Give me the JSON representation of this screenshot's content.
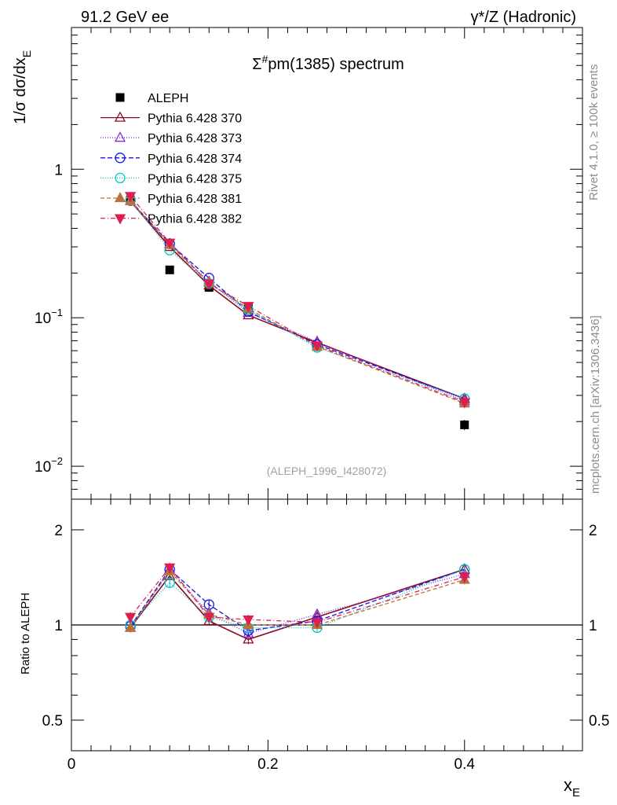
{
  "header": {
    "left": "91.2 GeV ee",
    "right": "γ*/Z (Hadronic)"
  },
  "side_text": {
    "rivet": "Rivet 4.1.0, ≥ 100k events",
    "mcplots": "mcplots.cern.ch [arXiv:1306.3436]"
  },
  "chart_data": [
    {
      "type": "scatter",
      "title_prefix": "Σ",
      "title_sup": "#",
      "title_rest": "pm(1385) spectrum",
      "ylabel_main": "1/σ  dσ/dx",
      "ylabel_sub": "E",
      "yscale": "log",
      "ylim": [
        0.006,
        9
      ],
      "xlim": [
        0,
        0.52
      ],
      "y_tick_labels": [
        {
          "value": 1,
          "base": "1",
          "exp": ""
        },
        {
          "value": 0.1,
          "base": "10",
          "exp": "−1"
        },
        {
          "value": 0.01,
          "base": "10",
          "exp": "−2"
        }
      ],
      "watermark": "(ALEPH_1996_I428072)",
      "legend_position": "top-left",
      "x": [
        0.06,
        0.1,
        0.14,
        0.18,
        0.25,
        0.4
      ],
      "series": [
        {
          "name": "ALEPH",
          "color": "#000000",
          "marker": "square",
          "dash": "",
          "values": [
            0.62,
            0.21,
            0.16,
            0.115,
            0.064,
            0.019
          ],
          "errors": [
            0.03,
            0.01,
            0.008,
            0.006,
            0.004,
            0.0015
          ]
        },
        {
          "name": "Pythia 6.428 370",
          "color": "#8b0a1e",
          "marker": "triangle-open",
          "dash": "",
          "values": [
            0.61,
            0.3,
            0.165,
            0.104,
            0.068,
            0.0285
          ]
        },
        {
          "name": "Pythia 6.428 373",
          "color": "#8a2be2",
          "marker": "triangle-open",
          "dash": "1,2",
          "values": [
            0.61,
            0.315,
            0.175,
            0.108,
            0.069,
            0.0275
          ]
        },
        {
          "name": "Pythia 6.428 374",
          "color": "#1414e6",
          "marker": "circle-open",
          "dash": "6,3",
          "values": [
            0.615,
            0.315,
            0.185,
            0.11,
            0.066,
            0.0285
          ]
        },
        {
          "name": "Pythia 6.428 375",
          "color": "#00c8c8",
          "marker": "circle-open",
          "dash": "1,2",
          "values": [
            0.62,
            0.285,
            0.17,
            0.113,
            0.063,
            0.0285
          ]
        },
        {
          "name": "Pythia 6.428 381",
          "color": "#b8733d",
          "marker": "triangle-filled",
          "dash": "5,3",
          "values": [
            0.61,
            0.31,
            0.172,
            0.115,
            0.064,
            0.0265
          ]
        },
        {
          "name": "Pythia 6.428 382",
          "color": "#dc1e50",
          "marker": "triangle-down-filled",
          "dash": "6,3,1,3",
          "values": [
            0.66,
            0.32,
            0.17,
            0.12,
            0.065,
            0.027
          ]
        }
      ]
    },
    {
      "type": "line",
      "ylabel": "Ratio to ALEPH",
      "xlabel_main": "x",
      "xlabel_sub": "E",
      "yscale": "log",
      "ylim": [
        0.4,
        2.5
      ],
      "reference_line": 1,
      "x_tick_labels": [
        {
          "value": 0,
          "label": "0"
        },
        {
          "value": 0.2,
          "label": "0.2"
        },
        {
          "value": 0.4,
          "label": "0.4"
        }
      ],
      "y_tick_labels": [
        {
          "value": 2,
          "label": "2"
        },
        {
          "value": 1,
          "label": "1"
        },
        {
          "value": 0.5,
          "label": "0.5"
        }
      ],
      "series": [
        {
          "name": "Pythia 6.428 370",
          "values": [
            0.98,
            1.43,
            1.03,
            0.9,
            1.06,
            1.5
          ]
        },
        {
          "name": "Pythia 6.428 373",
          "values": [
            0.98,
            1.5,
            1.09,
            0.94,
            1.08,
            1.45
          ]
        },
        {
          "name": "Pythia 6.428 374",
          "values": [
            0.99,
            1.5,
            1.16,
            0.96,
            1.03,
            1.5
          ]
        },
        {
          "name": "Pythia 6.428 375",
          "values": [
            1.0,
            1.36,
            1.06,
            0.98,
            0.98,
            1.5
          ]
        },
        {
          "name": "Pythia 6.428 381",
          "values": [
            0.98,
            1.48,
            1.08,
            1.0,
            1.0,
            1.39
          ]
        },
        {
          "name": "Pythia 6.428 382",
          "values": [
            1.06,
            1.52,
            1.06,
            1.04,
            1.02,
            1.42
          ]
        }
      ]
    }
  ]
}
